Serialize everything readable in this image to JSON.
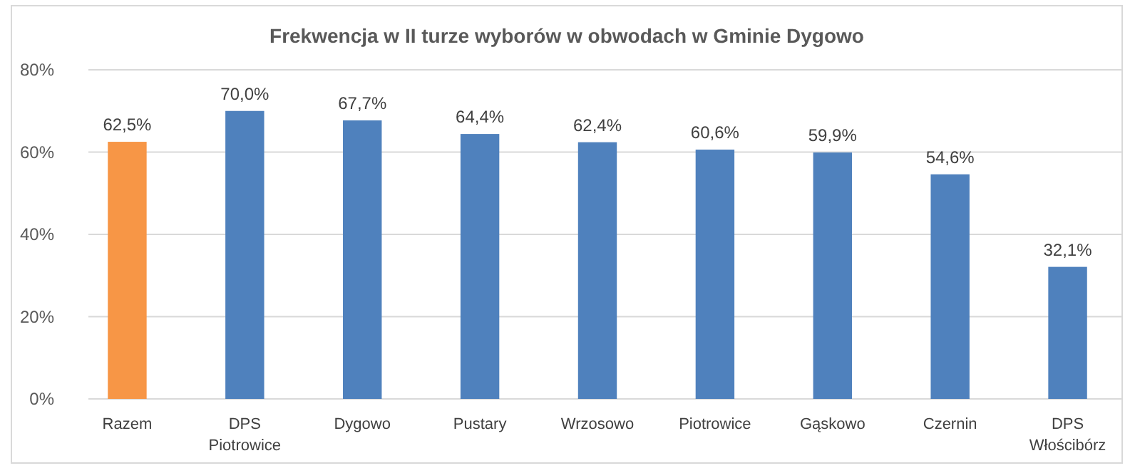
{
  "chart_data": {
    "type": "bar",
    "title": "Frekwencja w II turze wyborów w obwodach w Gminie Dygowo",
    "categories": [
      "Razem",
      "DPS Piotrowice",
      "Dygowo",
      "Pustary",
      "Wrzosowo",
      "Piotrowice",
      "Gąskowo",
      "Czernin",
      "DPS Włościbórz"
    ],
    "values": [
      62.5,
      70.0,
      67.7,
      64.4,
      62.4,
      60.6,
      59.9,
      54.6,
      32.1
    ],
    "colors": [
      "#f79646",
      "#4f81bd",
      "#4f81bd",
      "#4f81bd",
      "#4f81bd",
      "#4f81bd",
      "#4f81bd",
      "#4f81bd",
      "#4f81bd"
    ],
    "value_labels": [
      "62,5%",
      "70,0%",
      "67,7%",
      "64,4%",
      "62,4%",
      "60,6%",
      "59,9%",
      "54,6%",
      "32,1%"
    ],
    "ylim": [
      0,
      80
    ],
    "yticks": [
      {
        "value": 0,
        "label": "0%"
      },
      {
        "value": 20,
        "label": "20%"
      },
      {
        "value": 40,
        "label": "40%"
      },
      {
        "value": 60,
        "label": "60%"
      },
      {
        "value": 80,
        "label": "80%"
      }
    ],
    "grid": "y"
  }
}
